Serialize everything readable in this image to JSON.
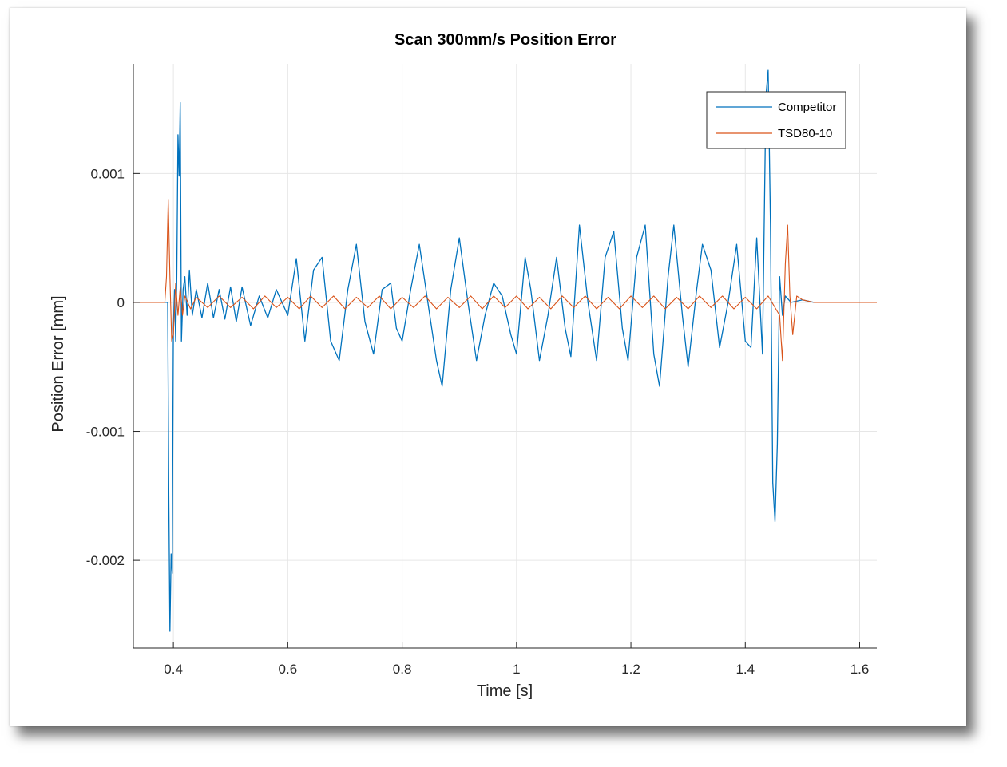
{
  "chart_data": {
    "type": "line",
    "title": "Scan 300mm/s Position Error",
    "xlabel": "Time [s]",
    "ylabel": "Position Error [mm]",
    "xlim": [
      0.33,
      1.63
    ],
    "ylim": [
      -0.00268,
      0.00185
    ],
    "xticks": [
      0.4,
      0.6,
      0.8,
      1.0,
      1.2,
      1.4,
      1.6
    ],
    "xtick_labels": [
      "0.4",
      "0.6",
      "0.8",
      "1",
      "1.2",
      "1.4",
      "1.6"
    ],
    "yticks": [
      0.001,
      0,
      -0.001,
      -0.002
    ],
    "ytick_labels": [
      "0.001",
      "0",
      "-0.001",
      "-0.002"
    ],
    "grid": true,
    "legend_position": "top-right",
    "series": [
      {
        "name": "Competitor",
        "color": "#0072BD",
        "points": [
          [
            0.33,
            0
          ],
          [
            0.385,
            0
          ],
          [
            0.39,
            0.0
          ],
          [
            0.392,
            -0.0015
          ],
          [
            0.394,
            -0.00255
          ],
          [
            0.396,
            -0.00195
          ],
          [
            0.398,
            -0.0021
          ],
          [
            0.4,
            -0.0002
          ],
          [
            0.402,
            0.0001
          ],
          [
            0.404,
            -0.0003
          ],
          [
            0.406,
            0.0002
          ],
          [
            0.408,
            0.0013
          ],
          [
            0.41,
            0.00098
          ],
          [
            0.412,
            0.00155
          ],
          [
            0.414,
            -0.0003
          ],
          [
            0.417,
            0.0001
          ],
          [
            0.42,
            0.0002
          ],
          [
            0.424,
            -0.0001
          ],
          [
            0.428,
            0.00025
          ],
          [
            0.433,
            -0.0001
          ],
          [
            0.44,
            0.0001
          ],
          [
            0.45,
            -0.00012
          ],
          [
            0.46,
            0.00015
          ],
          [
            0.47,
            -0.00012
          ],
          [
            0.48,
            0.0001
          ],
          [
            0.49,
            -0.00013
          ],
          [
            0.5,
            0.00012
          ],
          [
            0.51,
            -0.00015
          ],
          [
            0.52,
            0.00012
          ],
          [
            0.535,
            -0.00018
          ],
          [
            0.55,
            5e-05
          ],
          [
            0.565,
            -0.00012
          ],
          [
            0.58,
            0.0001
          ],
          [
            0.6,
            -0.0001
          ],
          [
            0.615,
            0.00034
          ],
          [
            0.63,
            -0.0003
          ],
          [
            0.645,
            0.00025
          ],
          [
            0.66,
            0.00035
          ],
          [
            0.675,
            -0.0003
          ],
          [
            0.69,
            -0.00045
          ],
          [
            0.705,
            0.0001
          ],
          [
            0.72,
            0.00045
          ],
          [
            0.735,
            -0.00015
          ],
          [
            0.75,
            -0.0004
          ],
          [
            0.765,
            0.0001
          ],
          [
            0.78,
            0.00015
          ],
          [
            0.79,
            -0.0002
          ],
          [
            0.8,
            -0.0003
          ],
          [
            0.815,
            0.0001
          ],
          [
            0.83,
            0.00045
          ],
          [
            0.845,
            0.0
          ],
          [
            0.86,
            -0.00045
          ],
          [
            0.87,
            -0.00065
          ],
          [
            0.885,
            0.0001
          ],
          [
            0.9,
            0.0005
          ],
          [
            0.915,
            0.0
          ],
          [
            0.93,
            -0.00045
          ],
          [
            0.945,
            -0.0001
          ],
          [
            0.96,
            0.00015
          ],
          [
            0.975,
            5e-05
          ],
          [
            0.99,
            -0.00025
          ],
          [
            1.0,
            -0.0004
          ],
          [
            1.015,
            0.00035
          ],
          [
            1.025,
            0.0001
          ],
          [
            1.04,
            -0.00045
          ],
          [
            1.055,
            -0.0001
          ],
          [
            1.07,
            0.00035
          ],
          [
            1.085,
            -0.0002
          ],
          [
            1.095,
            -0.00042
          ],
          [
            1.11,
            0.0006
          ],
          [
            1.125,
            0.0
          ],
          [
            1.14,
            -0.00045
          ],
          [
            1.155,
            0.00035
          ],
          [
            1.17,
            0.00055
          ],
          [
            1.185,
            -0.0002
          ],
          [
            1.195,
            -0.00045
          ],
          [
            1.21,
            0.00035
          ],
          [
            1.225,
            0.0006
          ],
          [
            1.24,
            -0.0004
          ],
          [
            1.25,
            -0.00065
          ],
          [
            1.265,
            0.0002
          ],
          [
            1.275,
            0.0006
          ],
          [
            1.29,
            -0.0001
          ],
          [
            1.3,
            -0.0005
          ],
          [
            1.315,
            0.0001
          ],
          [
            1.325,
            0.00045
          ],
          [
            1.34,
            0.00025
          ],
          [
            1.355,
            -0.00035
          ],
          [
            1.37,
            0.0
          ],
          [
            1.385,
            0.00045
          ],
          [
            1.4,
            -0.0003
          ],
          [
            1.41,
            -0.00035
          ],
          [
            1.42,
            0.0005
          ],
          [
            1.43,
            -0.0004
          ],
          [
            1.436,
            0.0016
          ],
          [
            1.44,
            0.0018
          ],
          [
            1.444,
            0.0006
          ],
          [
            1.448,
            -0.0014
          ],
          [
            1.452,
            -0.0017
          ],
          [
            1.456,
            -0.0011
          ],
          [
            1.46,
            0.0002
          ],
          [
            1.465,
            -0.0001
          ],
          [
            1.47,
            5e-05
          ],
          [
            1.48,
            0.0
          ],
          [
            1.5,
            2e-05
          ],
          [
            1.52,
            0.0
          ],
          [
            1.63,
            0
          ]
        ]
      },
      {
        "name": "TSD80-10",
        "color": "#D95319",
        "points": [
          [
            0.33,
            0
          ],
          [
            0.385,
            0
          ],
          [
            0.388,
            0.0002
          ],
          [
            0.391,
            0.0008
          ],
          [
            0.394,
            0.0002
          ],
          [
            0.397,
            -0.0003
          ],
          [
            0.4,
            -0.00025
          ],
          [
            0.404,
            0.00015
          ],
          [
            0.408,
            -0.0001
          ],
          [
            0.412,
            0.00012
          ],
          [
            0.416,
            -0.0001
          ],
          [
            0.42,
            5e-05
          ],
          [
            0.43,
            -5e-05
          ],
          [
            0.44,
            4e-05
          ],
          [
            0.46,
            -4e-05
          ],
          [
            0.48,
            5e-05
          ],
          [
            0.5,
            -4e-05
          ],
          [
            0.52,
            4e-05
          ],
          [
            0.54,
            -5e-05
          ],
          [
            0.56,
            5e-05
          ],
          [
            0.58,
            -4e-05
          ],
          [
            0.6,
            4e-05
          ],
          [
            0.62,
            -5e-05
          ],
          [
            0.64,
            5e-05
          ],
          [
            0.66,
            -4e-05
          ],
          [
            0.68,
            5e-05
          ],
          [
            0.7,
            -5e-05
          ],
          [
            0.72,
            4e-05
          ],
          [
            0.74,
            -4e-05
          ],
          [
            0.76,
            5e-05
          ],
          [
            0.78,
            -5e-05
          ],
          [
            0.8,
            4e-05
          ],
          [
            0.82,
            -4e-05
          ],
          [
            0.84,
            5e-05
          ],
          [
            0.86,
            -5e-05
          ],
          [
            0.88,
            4e-05
          ],
          [
            0.9,
            -4e-05
          ],
          [
            0.92,
            5e-05
          ],
          [
            0.94,
            -5e-05
          ],
          [
            0.96,
            5e-05
          ],
          [
            0.98,
            -4e-05
          ],
          [
            1.0,
            5e-05
          ],
          [
            1.02,
            -5e-05
          ],
          [
            1.04,
            4e-05
          ],
          [
            1.06,
            -5e-05
          ],
          [
            1.08,
            5e-05
          ],
          [
            1.1,
            -4e-05
          ],
          [
            1.12,
            5e-05
          ],
          [
            1.14,
            -5e-05
          ],
          [
            1.16,
            4e-05
          ],
          [
            1.18,
            -5e-05
          ],
          [
            1.2,
            5e-05
          ],
          [
            1.22,
            -4e-05
          ],
          [
            1.24,
            5e-05
          ],
          [
            1.26,
            -5e-05
          ],
          [
            1.28,
            4e-05
          ],
          [
            1.3,
            -5e-05
          ],
          [
            1.32,
            5e-05
          ],
          [
            1.34,
            -4e-05
          ],
          [
            1.36,
            5e-05
          ],
          [
            1.38,
            -5e-05
          ],
          [
            1.4,
            4e-05
          ],
          [
            1.42,
            -5e-05
          ],
          [
            1.44,
            5e-05
          ],
          [
            1.46,
            -0.0001
          ],
          [
            1.465,
            -0.00045
          ],
          [
            1.47,
            0.0003
          ],
          [
            1.474,
            0.0006
          ],
          [
            1.478,
            5e-05
          ],
          [
            1.483,
            -0.00025
          ],
          [
            1.49,
            5e-05
          ],
          [
            1.5,
            2e-05
          ],
          [
            1.52,
            0.0
          ],
          [
            1.63,
            0
          ]
        ]
      }
    ]
  }
}
